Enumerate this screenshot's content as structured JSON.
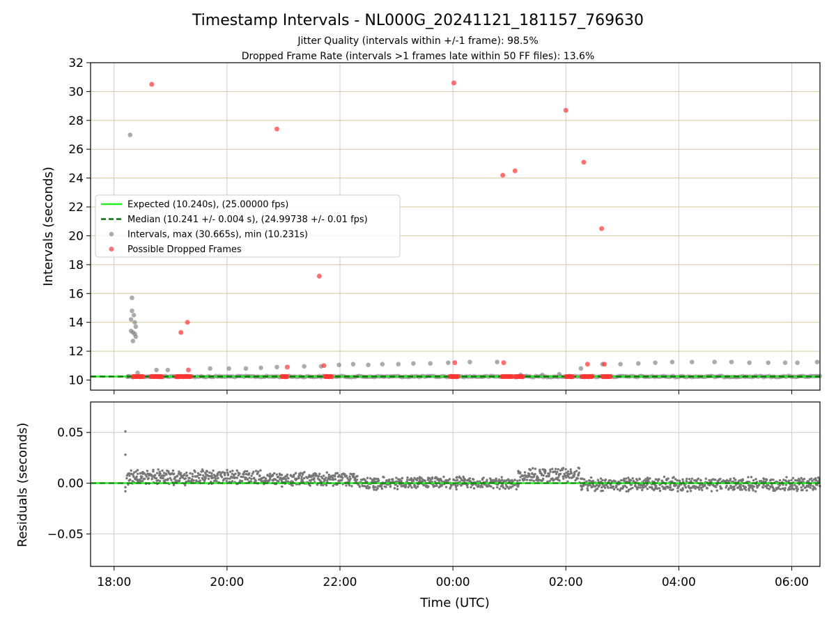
{
  "figure": {
    "title": "Timestamp Intervals - NL000G_20241121_181157_769630",
    "subtitle_line1": "Jitter Quality (intervals within +/-1 frame): 98.5%",
    "subtitle_line2": "Dropped Frame Rate (intervals >1 frames late within 50 FF files): 13.6%"
  },
  "colors": {
    "expected": "#22ee22",
    "median": "#007700",
    "intervals": "#808080",
    "dropped": "#ff3333",
    "ygrid_top": "#d6c99a",
    "grid": "#cccccc"
  },
  "chart_data": [
    {
      "type": "scatter",
      "ylabel": "Intervals (seconds)",
      "xlim": [
        "17:35",
        "06:30"
      ],
      "ylim": [
        9.3,
        32
      ],
      "yticks": [
        "10",
        "12",
        "14",
        "16",
        "18",
        "20",
        "22",
        "24",
        "26",
        "28",
        "30",
        "32"
      ],
      "grid": true,
      "legend_position": "center-left",
      "legend": [
        {
          "label": "Expected (10.240s), (25.00000 fps)",
          "kind": "solid-line"
        },
        {
          "label": "Median (10.241 +/- 0.004 s), (24.99738 +/- 0.01 fps)",
          "kind": "dashed-line"
        },
        {
          "label": "Intervals, max (30.665s), min (10.231s)",
          "kind": "gray-point"
        },
        {
          "label": "Possible Dropped Frames",
          "kind": "red-point"
        }
      ],
      "expected_interval": 10.24,
      "median_interval": 10.241,
      "series": [
        {
          "name": "Intervals, max (30.665s), min (10.231s)",
          "x": [
            "18:15",
            "18:17",
            "18:18",
            "18:18",
            "18:19",
            "18:19",
            "18:20",
            "18:20",
            "18:21",
            "18:22",
            "18:22",
            "18:23",
            "18:23",
            "18:25",
            "18:45",
            "18:57",
            "19:42",
            "20:02",
            "20:20",
            "20:36",
            "20:53",
            "21:22",
            "21:40",
            "21:59",
            "22:14",
            "22:30",
            "22:45",
            "23:02",
            "23:18",
            "23:36",
            "23:55",
            "00:18",
            "00:47",
            "01:12",
            "01:35",
            "01:53",
            "02:16",
            "02:39",
            "02:58",
            "03:17",
            "03:35",
            "03:53",
            "04:14",
            "04:38",
            "04:56",
            "05:15",
            "05:35",
            "05:53",
            "06:06",
            "06:27"
          ],
          "y": [
            10.25,
            27.0,
            13.4,
            14.2,
            14.8,
            15.7,
            13.3,
            12.7,
            14.5,
            13.2,
            14.0,
            13.0,
            13.7,
            10.5,
            10.7,
            10.7,
            10.8,
            10.8,
            10.8,
            10.85,
            10.9,
            10.95,
            10.95,
            11.05,
            11.1,
            11.05,
            11.1,
            11.1,
            11.15,
            11.15,
            11.2,
            11.25,
            11.25,
            10.35,
            10.35,
            10.4,
            10.8,
            11.1,
            11.1,
            11.15,
            11.2,
            11.25,
            11.25,
            11.25,
            11.25,
            11.2,
            11.2,
            11.2,
            11.2,
            11.25
          ]
        },
        {
          "name": "Possible Dropped Frames",
          "x": [
            "18:40",
            "19:11",
            "19:18",
            "19:19",
            "20:53",
            "21:04",
            "21:38",
            "21:43",
            "00:01",
            "00:02",
            "00:53",
            "00:54",
            "01:06",
            "02:00",
            "02:19",
            "02:23",
            "02:38",
            "02:41"
          ],
          "y": [
            30.5,
            13.3,
            14.0,
            10.7,
            27.4,
            10.9,
            17.2,
            11.0,
            30.6,
            11.2,
            24.2,
            11.2,
            24.5,
            28.7,
            25.1,
            11.1,
            20.5,
            11.1
          ],
          "clusters_at_10_24": [
            [
              "18:20",
              "18:31"
            ],
            [
              "18:39",
              "18:52"
            ],
            [
              "19:06",
              "19:22"
            ],
            [
              "20:58",
              "21:05"
            ],
            [
              "21:44",
              "21:52"
            ],
            [
              "23:57",
              "00:06"
            ],
            [
              "00:52",
              "01:04"
            ],
            [
              "01:06",
              "01:15"
            ],
            [
              "02:00",
              "02:08"
            ],
            [
              "02:17",
              "02:29"
            ],
            [
              "02:39",
              "02:48"
            ]
          ]
        }
      ]
    },
    {
      "type": "scatter",
      "xlabel": "Time (UTC)",
      "ylabel": "Residuals (seconds)",
      "xlim": [
        "17:35",
        "06:30"
      ],
      "ylim": [
        -0.082,
        0.08
      ],
      "yticks": [
        "0.05",
        "0.00",
        "−0.05"
      ],
      "xticks": [
        "18:00",
        "20:00",
        "22:00",
        "00:00",
        "02:00",
        "04:00",
        "06:00"
      ],
      "grid": true,
      "series": [
        {
          "name": "residuals",
          "outliers": {
            "x": [
              "18:12",
              "18:12",
              "18:12",
              "18:12"
            ],
            "y": [
              0.051,
              0.028,
              -0.004,
              -0.008
            ]
          },
          "band_segments": [
            {
              "from": "18:14",
              "to": "20:35",
              "center": 0.006,
              "spread": 0.012
            },
            {
              "from": "20:35",
              "to": "22:20",
              "center": 0.004,
              "spread": 0.011
            },
            {
              "from": "22:20",
              "to": "01:10",
              "center": 0.0,
              "spread": 0.01
            },
            {
              "from": "01:10",
              "to": "02:15",
              "center": 0.008,
              "spread": 0.012
            },
            {
              "from": "02:15",
              "to": "06:30",
              "center": -0.001,
              "spread": 0.011
            }
          ]
        }
      ]
    }
  ]
}
